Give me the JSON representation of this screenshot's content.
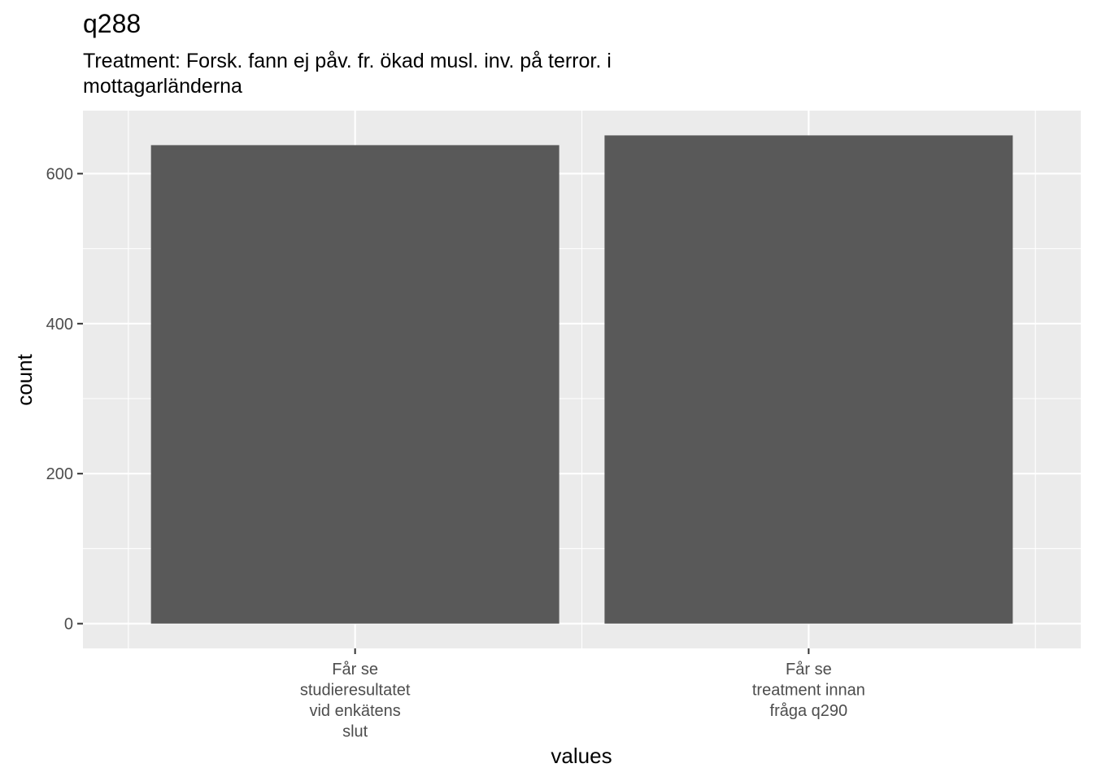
{
  "chart_data": {
    "type": "bar",
    "title": "q288",
    "subtitle": "Treatment: Forsk. fann ej påv. fr. ökad musl. inv. på terror. i\nmottagarländerna",
    "xlabel": "values",
    "ylabel": "count",
    "categories": [
      "Får se\nstudieresultatet\nvid enkätens\nslut",
      "Får se\ntreatment innan\nfråga q290"
    ],
    "values": [
      638,
      651
    ],
    "ylim": [
      -33,
      684
    ],
    "yticks": [
      0,
      200,
      400,
      600
    ],
    "grid": true,
    "legend": "none",
    "colors": {
      "bar": "#595959",
      "panel": "#ebebeb",
      "grid_major": "#ffffff",
      "tick_text": "#4d4d4d"
    }
  }
}
